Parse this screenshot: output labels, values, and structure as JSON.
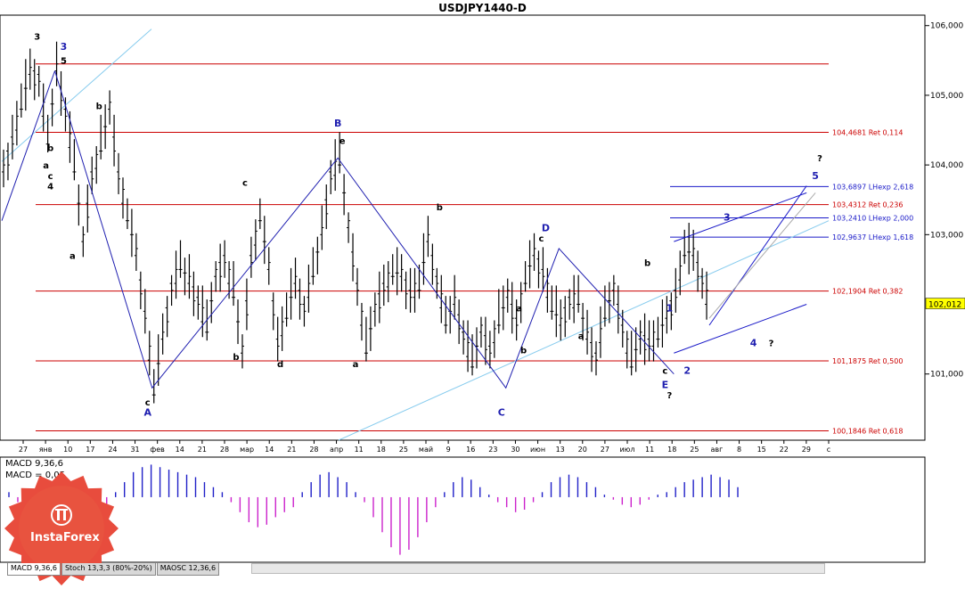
{
  "window": {
    "title": "USDJPY1440-D"
  },
  "chart_data": {
    "type": "bar",
    "symbol": "USDJPY",
    "timeframe": "D",
    "ylim": [
      100.05,
      106.15
    ],
    "price_ticks": [
      "106,000",
      "105,000",
      "104,000",
      "103,000",
      "101,000"
    ],
    "current_price": "102,012",
    "x_labels": [
      "27",
      "янв",
      "10",
      "17",
      "24",
      "31",
      "фев",
      "14",
      "21",
      "28",
      "мар",
      "14",
      "21",
      "28",
      "апр",
      "11",
      "18",
      "25",
      "май",
      "9",
      "16",
      "23",
      "30",
      "июн",
      "13",
      "20",
      "27",
      "июл",
      "11",
      "18",
      "25",
      "авг",
      "8",
      "15",
      "22",
      "29",
      "с"
    ],
    "price_path": [
      {
        "d": 0,
        "v": 103.9
      },
      {
        "d": 2,
        "v": 104.3
      },
      {
        "d": 4,
        "v": 104.9
      },
      {
        "d": 6,
        "v": 105.3
      },
      {
        "d": 8,
        "v": 105.2
      },
      {
        "d": 10,
        "v": 104.4
      },
      {
        "d": 12,
        "v": 105.35
      },
      {
        "d": 14,
        "v": 104.7
      },
      {
        "d": 16,
        "v": 104.0
      },
      {
        "d": 18,
        "v": 102.9
      },
      {
        "d": 20,
        "v": 103.8
      },
      {
        "d": 22,
        "v": 104.3
      },
      {
        "d": 24,
        "v": 104.8
      },
      {
        "d": 26,
        "v": 103.8
      },
      {
        "d": 28,
        "v": 103.3
      },
      {
        "d": 30,
        "v": 102.7
      },
      {
        "d": 32,
        "v": 101.8
      },
      {
        "d": 34,
        "v": 100.8
      },
      {
        "d": 36,
        "v": 101.5
      },
      {
        "d": 38,
        "v": 102.2
      },
      {
        "d": 40,
        "v": 102.6
      },
      {
        "d": 42,
        "v": 102.3
      },
      {
        "d": 44,
        "v": 102.0
      },
      {
        "d": 46,
        "v": 101.7
      },
      {
        "d": 48,
        "v": 102.4
      },
      {
        "d": 50,
        "v": 102.6
      },
      {
        "d": 52,
        "v": 102.2
      },
      {
        "d": 54,
        "v": 101.3
      },
      {
        "d": 56,
        "v": 102.6
      },
      {
        "d": 58,
        "v": 103.3
      },
      {
        "d": 60,
        "v": 102.5
      },
      {
        "d": 62,
        "v": 101.4
      },
      {
        "d": 64,
        "v": 101.9
      },
      {
        "d": 66,
        "v": 102.3
      },
      {
        "d": 68,
        "v": 101.9
      },
      {
        "d": 70,
        "v": 102.5
      },
      {
        "d": 72,
        "v": 103.0
      },
      {
        "d": 74,
        "v": 103.8
      },
      {
        "d": 76,
        "v": 104.1
      },
      {
        "d": 78,
        "v": 103.1
      },
      {
        "d": 80,
        "v": 102.2
      },
      {
        "d": 82,
        "v": 101.4
      },
      {
        "d": 84,
        "v": 101.9
      },
      {
        "d": 86,
        "v": 102.2
      },
      {
        "d": 88,
        "v": 102.5
      },
      {
        "d": 90,
        "v": 102.4
      },
      {
        "d": 92,
        "v": 102.1
      },
      {
        "d": 94,
        "v": 102.3
      },
      {
        "d": 96,
        "v": 102.9
      },
      {
        "d": 98,
        "v": 102.3
      },
      {
        "d": 100,
        "v": 101.8
      },
      {
        "d": 102,
        "v": 102.0
      },
      {
        "d": 104,
        "v": 101.5
      },
      {
        "d": 106,
        "v": 101.2
      },
      {
        "d": 108,
        "v": 101.6
      },
      {
        "d": 110,
        "v": 101.3
      },
      {
        "d": 112,
        "v": 101.8
      },
      {
        "d": 114,
        "v": 102.1
      },
      {
        "d": 116,
        "v": 101.7
      },
      {
        "d": 118,
        "v": 102.4
      },
      {
        "d": 120,
        "v": 102.7
      },
      {
        "d": 122,
        "v": 102.4
      },
      {
        "d": 124,
        "v": 102.0
      },
      {
        "d": 126,
        "v": 101.7
      },
      {
        "d": 128,
        "v": 102.0
      },
      {
        "d": 130,
        "v": 102.1
      },
      {
        "d": 132,
        "v": 101.5
      },
      {
        "d": 134,
        "v": 101.2
      },
      {
        "d": 136,
        "v": 101.9
      },
      {
        "d": 138,
        "v": 102.2
      },
      {
        "d": 140,
        "v": 101.6
      },
      {
        "d": 142,
        "v": 101.2
      },
      {
        "d": 144,
        "v": 101.5
      },
      {
        "d": 146,
        "v": 101.4
      },
      {
        "d": 148,
        "v": 101.6
      },
      {
        "d": 150,
        "v": 101.8
      },
      {
        "d": 152,
        "v": 102.1
      },
      {
        "d": 154,
        "v": 102.8
      },
      {
        "d": 156,
        "v": 102.7
      },
      {
        "d": 158,
        "v": 102.3
      },
      {
        "d": 160,
        "v": 101.9
      }
    ],
    "levels": [
      {
        "value": 105.45,
        "label": ""
      },
      {
        "value": 104.4681,
        "label": "104,4681 Ret 0,114"
      },
      {
        "value": 103.4312,
        "label": "103,4312 Ret 0,236"
      },
      {
        "value": 102.1904,
        "label": "102,1904 Ret 0,382"
      },
      {
        "value": 101.1875,
        "label": "101,1875 Ret 0,500"
      },
      {
        "value": 100.1846,
        "label": "100,1846 Ret 0,618"
      }
    ],
    "ext_levels": [
      {
        "value": 103.6897,
        "label": "103,6897 LHexp 2,618"
      },
      {
        "value": 103.241,
        "label": "103,2410 LHexp 2,000"
      },
      {
        "value": 102.9637,
        "label": "102,9637 LHexp 1,618"
      }
    ],
    "wave_lines": [
      [
        {
          "d": 0,
          "v": 103.2
        },
        {
          "d": 12,
          "v": 105.35
        }
      ],
      [
        {
          "d": 12,
          "v": 105.35
        },
        {
          "d": 34,
          "v": 100.8
        },
        {
          "d": 76,
          "v": 104.1
        },
        {
          "d": 114,
          "v": 100.8
        },
        {
          "d": 126,
          "v": 102.8
        },
        {
          "d": 152,
          "v": 101.0
        }
      ]
    ],
    "channel_lines": [
      [
        {
          "d": 160,
          "v": 101.7
        },
        {
          "d": 182,
          "v": 103.7
        }
      ],
      [
        {
          "d": 152,
          "v": 101.3
        },
        {
          "d": 182,
          "v": 102.0
        }
      ],
      [
        {
          "d": 152,
          "v": 102.9
        },
        {
          "d": 182,
          "v": 103.6
        }
      ]
    ],
    "wave_labels_blue": [
      {
        "d": 14,
        "v": 105.65,
        "text": "3"
      },
      {
        "d": 33,
        "v": 100.4,
        "text": "A"
      },
      {
        "d": 76,
        "v": 104.55,
        "text": "B"
      },
      {
        "d": 113,
        "v": 100.4,
        "text": "C"
      },
      {
        "d": 123,
        "v": 103.05,
        "text": "D"
      },
      {
        "d": 150,
        "v": 100.8,
        "text": "E"
      },
      {
        "d": 155,
        "v": 101.0,
        "text": "2"
      },
      {
        "d": 151,
        "v": 101.9,
        "text": "1"
      },
      {
        "d": 164,
        "v": 103.2,
        "text": "3"
      },
      {
        "d": 170,
        "v": 101.4,
        "text": "4"
      },
      {
        "d": 184,
        "v": 103.8,
        "text": "5"
      }
    ],
    "wave_labels_black": [
      {
        "d": 8,
        "v": 105.8,
        "text": "3"
      },
      {
        "d": 14,
        "v": 105.45,
        "text": "5"
      },
      {
        "d": 11,
        "v": 104.2,
        "text": "b"
      },
      {
        "d": 22,
        "v": 104.8,
        "text": "b"
      },
      {
        "d": 10,
        "v": 103.95,
        "text": "a"
      },
      {
        "d": 11,
        "v": 103.8,
        "text": "c"
      },
      {
        "d": 11,
        "v": 103.65,
        "text": "4"
      },
      {
        "d": 16,
        "v": 102.65,
        "text": "a"
      },
      {
        "d": 33,
        "v": 100.55,
        "text": "c"
      },
      {
        "d": 55,
        "v": 103.7,
        "text": "c"
      },
      {
        "d": 53,
        "v": 101.2,
        "text": "b"
      },
      {
        "d": 63,
        "v": 101.1,
        "text": "d"
      },
      {
        "d": 77,
        "v": 104.3,
        "text": "e"
      },
      {
        "d": 80,
        "v": 101.1,
        "text": "a"
      },
      {
        "d": 99,
        "v": 103.35,
        "text": "b"
      },
      {
        "d": 117,
        "v": 101.9,
        "text": "a"
      },
      {
        "d": 118,
        "v": 101.3,
        "text": "b"
      },
      {
        "d": 122,
        "v": 102.9,
        "text": "c"
      },
      {
        "d": 131,
        "v": 101.5,
        "text": "a"
      },
      {
        "d": 146,
        "v": 102.55,
        "text": "b"
      },
      {
        "d": 150,
        "v": 101.0,
        "text": "c"
      },
      {
        "d": 151,
        "v": 100.65,
        "text": "?"
      },
      {
        "d": 174,
        "v": 101.4,
        "text": "?"
      },
      {
        "d": 185,
        "v": 104.05,
        "text": "?"
      }
    ],
    "macd": {
      "label_title": "MACD 9,36,6",
      "label_value": "MACD = 0,05",
      "bars": [
        0.1,
        -0.1,
        -0.4,
        -0.6,
        -0.9,
        -1.1,
        -1.2,
        -1.15,
        -0.9,
        -0.7,
        -0.4,
        -0.2,
        0.1,
        0.3,
        0.5,
        0.6,
        0.65,
        0.6,
        0.55,
        0.5,
        0.45,
        0.4,
        0.3,
        0.2,
        0.1,
        -0.1,
        -0.3,
        -0.5,
        -0.6,
        -0.55,
        -0.4,
        -0.3,
        -0.2,
        0.1,
        0.3,
        0.45,
        0.5,
        0.4,
        0.3,
        0.1,
        -0.1,
        -0.4,
        -0.7,
        -1.0,
        -1.15,
        -1.05,
        -0.8,
        -0.5,
        -0.2,
        0.1,
        0.3,
        0.4,
        0.35,
        0.2,
        0.05,
        -0.1,
        -0.2,
        -0.3,
        -0.25,
        -0.1,
        0.1,
        0.3,
        0.4,
        0.45,
        0.4,
        0.3,
        0.2,
        0.05,
        -0.05,
        -0.15,
        -0.2,
        -0.15,
        -0.05,
        0.05,
        0.1,
        0.2,
        0.3,
        0.35,
        0.4,
        0.45,
        0.4,
        0.35,
        0.2
      ],
      "ylim": [
        -1.3,
        0.8
      ]
    },
    "x_range": [
      0,
      187
    ]
  },
  "macd_panel": {
    "title": "MACD 9,36,6",
    "value": "MACD = 0,05"
  },
  "tabs": [
    {
      "label": "MACD 9,36,6",
      "active": true
    },
    {
      "label": "Stoch 13,3,3 (80%-20%)",
      "active": false
    },
    {
      "label": "MAOSC 12,36,6",
      "active": false
    }
  ],
  "logo": {
    "text": "InstaForex"
  },
  "colors": {
    "price_bars": "#000000",
    "wave": "#2020b0",
    "retracement": "#cc0000",
    "extension": "#1a1ac8",
    "trendline": "#88ccee",
    "projection": "#aaaaaa",
    "macd_up": "#2020c8",
    "macd_down": "#cc22cc",
    "current_price_bg": "#ffff00",
    "logo_bg": "#e84c3d"
  }
}
